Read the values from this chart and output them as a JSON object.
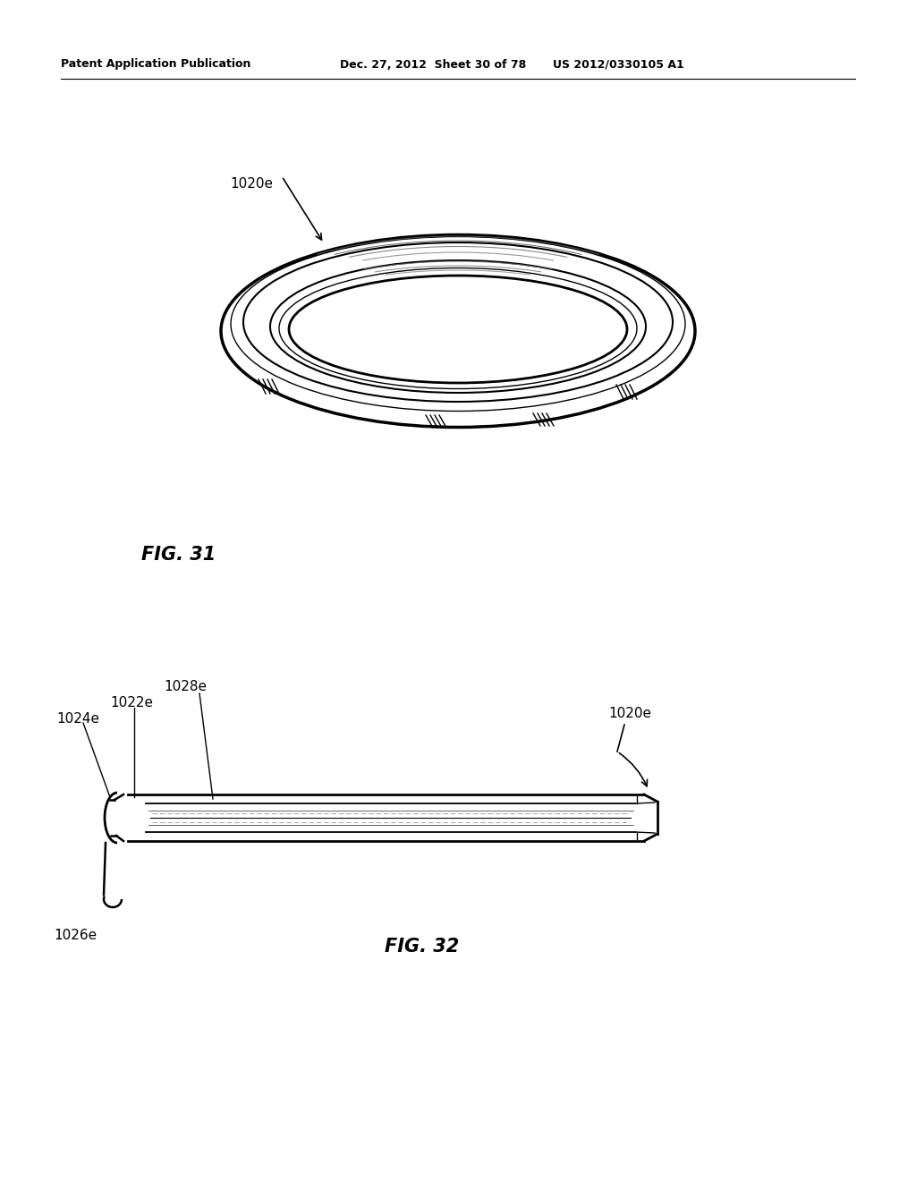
{
  "bg_color": "#ffffff",
  "header_left": "Patent Application Publication",
  "header_mid": "Dec. 27, 2012  Sheet 30 of 78",
  "header_right": "US 2012/0330105 A1",
  "fig31_label": "FIG. 31",
  "fig32_label": "FIG. 32",
  "label_1020e_top": "1020e",
  "label_1024e": "1024e",
  "label_1022e": "1022e",
  "label_1028e": "1028e",
  "label_1026e": "1026e",
  "label_1020e_bot": "1020e"
}
